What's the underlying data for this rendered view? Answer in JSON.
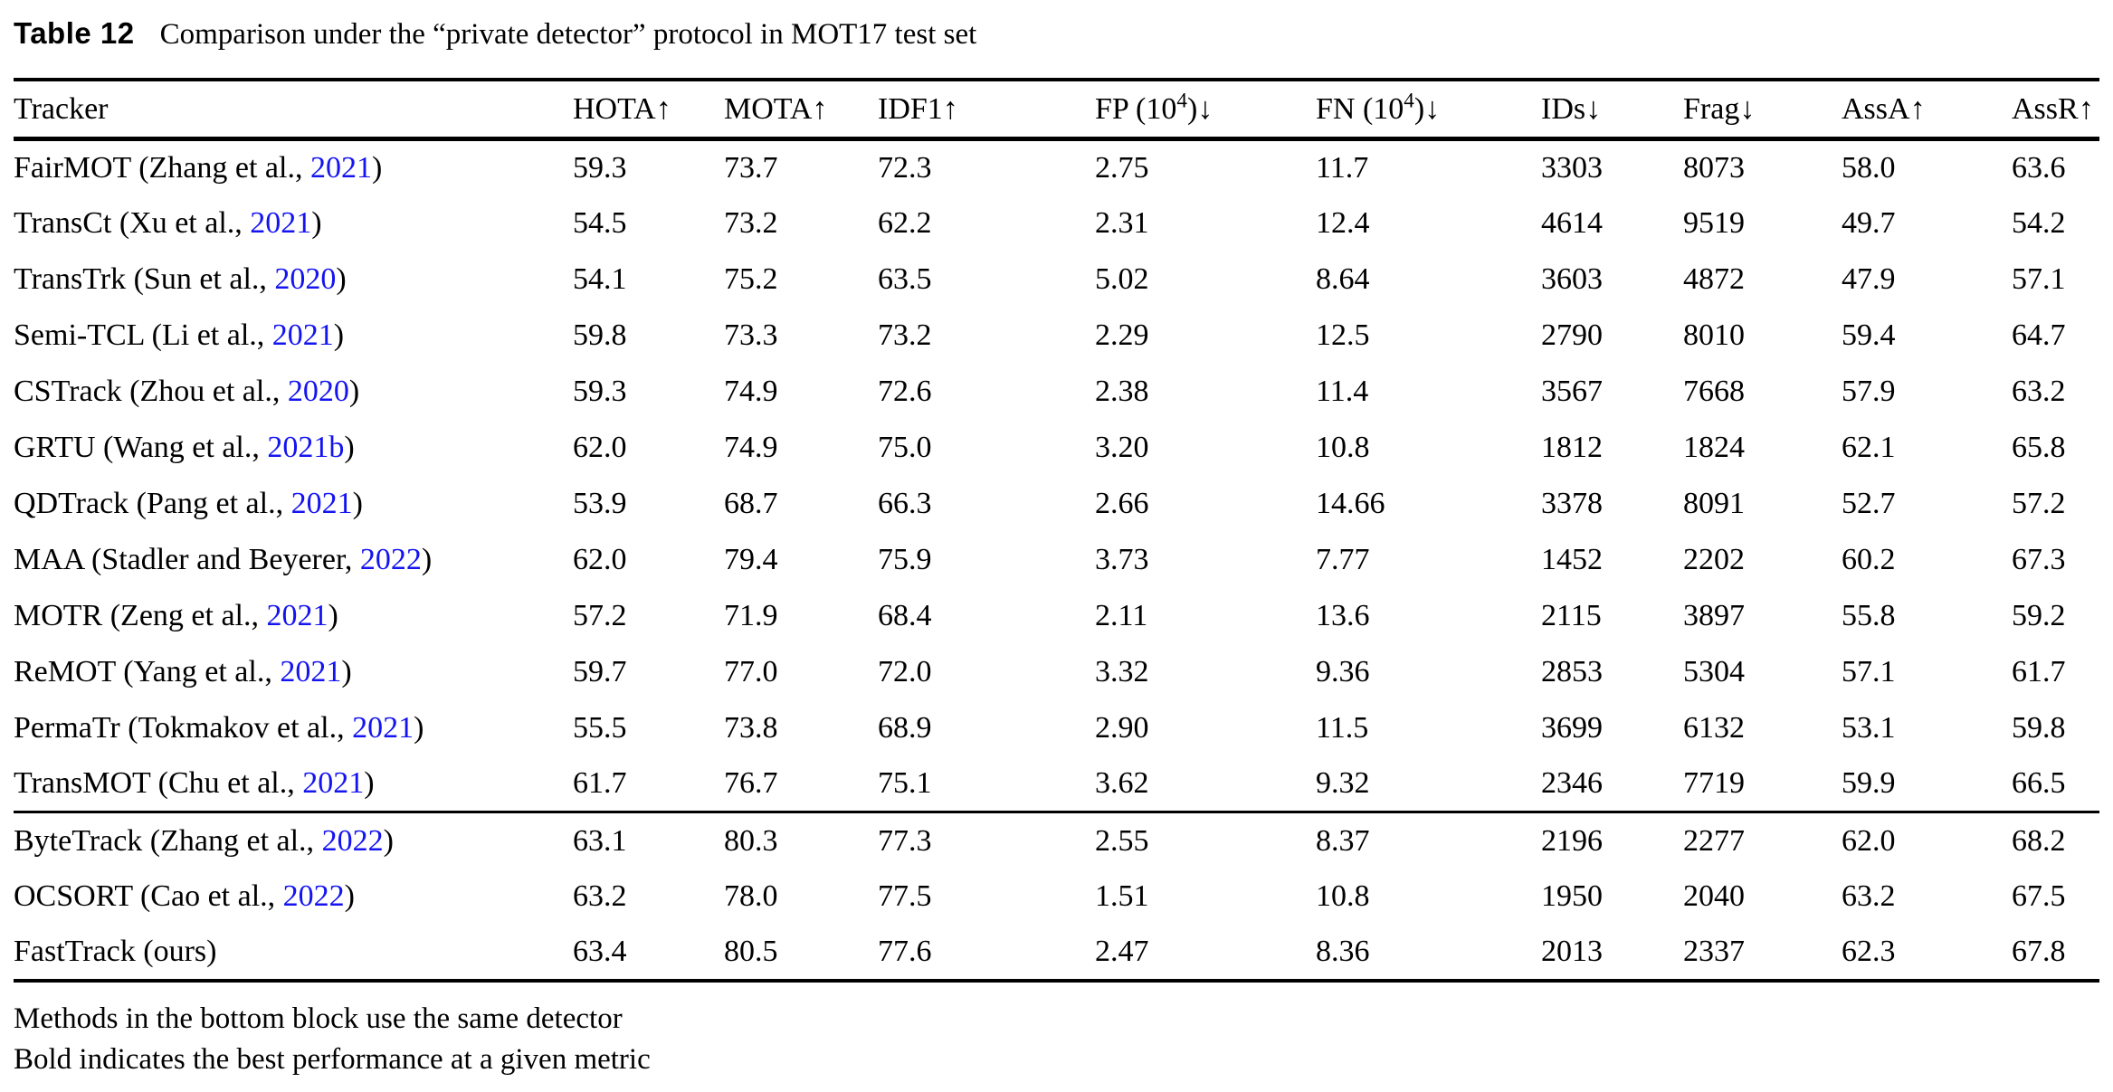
{
  "caption": {
    "label": "Table 12",
    "text": "Comparison under the “private detector” protocol in MOT17 test set"
  },
  "colors": {
    "citation_link": "#1414f0",
    "text": "#000000",
    "background": "#ffffff"
  },
  "table": {
    "columns": [
      {
        "key": "tracker",
        "pre": "Tracker",
        "sup": "",
        "post": ""
      },
      {
        "key": "hota",
        "pre": "HOTA↑",
        "sup": "",
        "post": ""
      },
      {
        "key": "mota",
        "pre": "MOTA↑",
        "sup": "",
        "post": ""
      },
      {
        "key": "idf1",
        "pre": "IDF1↑",
        "sup": "",
        "post": ""
      },
      {
        "key": "fp",
        "pre": "FP (10",
        "sup": "4",
        "post": ")↓"
      },
      {
        "key": "fn",
        "pre": "FN (10",
        "sup": "4",
        "post": ")↓"
      },
      {
        "key": "ids",
        "pre": "IDs↓",
        "sup": "",
        "post": ""
      },
      {
        "key": "frag",
        "pre": "Frag↓",
        "sup": "",
        "post": ""
      },
      {
        "key": "assa",
        "pre": "AssA↑",
        "sup": "",
        "post": ""
      },
      {
        "key": "assr",
        "pre": "AssR↑",
        "sup": "",
        "post": ""
      }
    ],
    "bottom_block_start": 12,
    "rows": [
      {
        "tracker_pre": "FairMOT (Zhang et al., ",
        "year": "2021",
        "tracker_post": ")",
        "values": [
          "59.3",
          "73.7",
          "72.3",
          "2.75",
          "11.7",
          "3303",
          "8073",
          "58.0",
          "63.6"
        ],
        "bold": []
      },
      {
        "tracker_pre": "TransCt (Xu et al., ",
        "year": "2021",
        "tracker_post": ")",
        "values": [
          "54.5",
          "73.2",
          "62.2",
          "2.31",
          "12.4",
          "4614",
          "9519",
          "49.7",
          "54.2"
        ],
        "bold": []
      },
      {
        "tracker_pre": "TransTrk (Sun et al., ",
        "year": "2020",
        "tracker_post": ")",
        "values": [
          "54.1",
          "75.2",
          "63.5",
          "5.02",
          "8.64",
          "3603",
          "4872",
          "47.9",
          "57.1"
        ],
        "bold": []
      },
      {
        "tracker_pre": "Semi-TCL (Li et al., ",
        "year": "2021",
        "tracker_post": ")",
        "values": [
          "59.8",
          "73.3",
          "73.2",
          "2.29",
          "12.5",
          "2790",
          "8010",
          "59.4",
          "64.7"
        ],
        "bold": []
      },
      {
        "tracker_pre": "CSTrack (Zhou et al., ",
        "year": "2020",
        "tracker_post": ")",
        "values": [
          "59.3",
          "74.9",
          "72.6",
          "2.38",
          "11.4",
          "3567",
          "7668",
          "57.9",
          "63.2"
        ],
        "bold": []
      },
      {
        "tracker_pre": "GRTU (Wang et al., ",
        "year": "2021b",
        "tracker_post": ")",
        "values": [
          "62.0",
          "74.9",
          "75.0",
          "3.20",
          "10.8",
          "1812",
          "1824",
          "62.1",
          "65.8"
        ],
        "bold": [
          6
        ]
      },
      {
        "tracker_pre": "QDTrack (Pang et al., ",
        "year": "2021",
        "tracker_post": ")",
        "values": [
          "53.9",
          "68.7",
          "66.3",
          "2.66",
          "14.66",
          "3378",
          "8091",
          "52.7",
          "57.2"
        ],
        "bold": []
      },
      {
        "tracker_pre": "MAA (Stadler and Beyerer, ",
        "year": "2022",
        "tracker_post": ")",
        "values": [
          "62.0",
          "79.4",
          "75.9",
          "3.73",
          "7.77",
          "1452",
          "2202",
          "60.2",
          "67.3"
        ],
        "bold": [
          4,
          5
        ]
      },
      {
        "tracker_pre": "MOTR (Zeng et al., ",
        "year": "2021",
        "tracker_post": ")",
        "values": [
          "57.2",
          "71.9",
          "68.4",
          "2.11",
          "13.6",
          "2115",
          "3897",
          "55.8",
          "59.2"
        ],
        "bold": []
      },
      {
        "tracker_pre": "ReMOT (Yang et al., ",
        "year": "2021",
        "tracker_post": ")",
        "values": [
          "59.7",
          "77.0",
          "72.0",
          "3.32",
          "9.36",
          "2853",
          "5304",
          "57.1",
          "61.7"
        ],
        "bold": []
      },
      {
        "tracker_pre": "PermaTr (Tokmakov et al., ",
        "year": "2021",
        "tracker_post": ")",
        "values": [
          "55.5",
          "73.8",
          "68.9",
          "2.90",
          "11.5",
          "3699",
          "6132",
          "53.1",
          "59.8"
        ],
        "bold": []
      },
      {
        "tracker_pre": "TransMOT (Chu et al., ",
        "year": "2021",
        "tracker_post": ")",
        "values": [
          "61.7",
          "76.7",
          "75.1",
          "3.62",
          "9.32",
          "2346",
          "7719",
          "59.9",
          "66.5"
        ],
        "bold": []
      },
      {
        "tracker_pre": "ByteTrack (Zhang et al., ",
        "year": "2022",
        "tracker_post": ")",
        "values": [
          "63.1",
          "80.3",
          "77.3",
          "2.55",
          "8.37",
          "2196",
          "2277",
          "62.0",
          "68.2"
        ],
        "bold": [
          8
        ]
      },
      {
        "tracker_pre": "OCSORT (Cao et al., ",
        "year": "2022",
        "tracker_post": ")",
        "values": [
          "63.2",
          "78.0",
          "77.5",
          "1.51",
          "10.8",
          "1950",
          "2040",
          "63.2",
          "67.5"
        ],
        "bold": [
          3,
          7
        ]
      },
      {
        "tracker_pre": "FastTrack (ours)",
        "year": "",
        "tracker_post": "",
        "values": [
          "63.4",
          "80.5",
          "77.6",
          "2.47",
          "8.36",
          "2013",
          "2337",
          "62.3",
          "67.8"
        ],
        "bold": [
          0,
          1,
          2
        ]
      }
    ]
  },
  "footnotes": [
    "Methods in the bottom block use the same detector",
    "Bold indicates the best performance at a given metric"
  ]
}
